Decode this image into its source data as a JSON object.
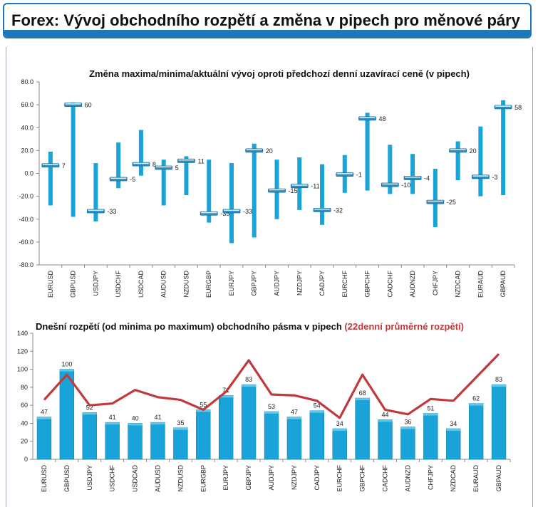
{
  "header": {
    "title": "Forex: Vývoj obchodního rozpětí a změna v pipech pro měnové páry"
  },
  "chart_data": [
    {
      "type": "range",
      "title": "Změna maxima/minima/aktuální vývoj oproti předchozí denní uzavírací ceně (v pipech)",
      "categories": [
        "EURUSD",
        "GBPUSD",
        "USDJPY",
        "USDCHF",
        "USDCAD",
        "AUDUSD",
        "NZDUSD",
        "EURGBP",
        "EURJPY",
        "GBPJPY",
        "AUDJPY",
        "NZDJPY",
        "CADJPY",
        "EURCHF",
        "GBPCHF",
        "CADCHF",
        "AUDNZD",
        "CHFJPY",
        "NZDCAD",
        "EURAUD",
        "GBPAUD"
      ],
      "high": [
        19,
        62,
        9,
        27,
        38,
        12,
        15,
        12,
        9,
        26,
        12,
        14,
        8,
        16,
        53,
        25,
        17,
        4,
        28,
        41,
        64
      ],
      "low": [
        -28,
        -38,
        -42,
        -13,
        -2,
        -28,
        -19,
        -43,
        -61,
        -56,
        -40,
        -32,
        -45,
        -17,
        -15,
        -18,
        -18,
        -47,
        -6,
        -20,
        -19
      ],
      "current": [
        7,
        60,
        -33,
        -5,
        8,
        5,
        11,
        -35,
        -33,
        20,
        -15,
        -11,
        -32,
        -1,
        48,
        -10,
        -4,
        -25,
        20,
        -3,
        58
      ],
      "current_labels": [
        "7",
        "60",
        "-33",
        "-5",
        "8",
        "5",
        "11",
        "-35",
        "-33",
        "20",
        "-15",
        "-11",
        "-32",
        "-1",
        "48",
        "-10",
        "-4",
        "-25",
        "20",
        "-3",
        "58"
      ],
      "ylim": [
        -80,
        80
      ],
      "yticks": [
        "80.0",
        "60.0",
        "40.0",
        "20.0",
        "0.0",
        "-20.0",
        "-40.0",
        "-60.0",
        "-80.0"
      ],
      "bar_color": "#1aa3d8"
    },
    {
      "type": "bar+line",
      "title": "Dnešní rozpětí (od minima po maximum) obchodního pásma v pipech",
      "title_highlight": "(22denní průměrné rozpětí)",
      "categories": [
        "EURUSD",
        "GBPUSD",
        "USDJPY",
        "USDCHF",
        "USDCAD",
        "AUDUSD",
        "NZDUSD",
        "EURGBP",
        "EURJPY",
        "GBPJPY",
        "AUDJPY",
        "NZDJPY",
        "CADJPY",
        "EURCHF",
        "GBPCHF",
        "CADCHF",
        "AUDNZD",
        "CHFJPY",
        "NZDCAD",
        "EURAUD",
        "GBPAUD"
      ],
      "bars": [
        47,
        100,
        52,
        41,
        40,
        41,
        35,
        55,
        71,
        83,
        53,
        47,
        54,
        34,
        68,
        44,
        36,
        51,
        34,
        62,
        83
      ],
      "bar_labels": [
        "47",
        "100",
        "52",
        "41",
        "40",
        "41",
        "35",
        "55",
        "71",
        "83",
        "53",
        "47",
        "54",
        "34",
        "68",
        "44",
        "36",
        "51",
        "34",
        "62",
        "83"
      ],
      "line": [
        66,
        94,
        60,
        62,
        77,
        69,
        66,
        55,
        75,
        110,
        72,
        71,
        65,
        46,
        94,
        55,
        50,
        67,
        65,
        91,
        117
      ],
      "ylim": [
        0,
        140
      ],
      "yticks": [
        "140",
        "120",
        "100",
        "80",
        "60",
        "40",
        "20",
        "0"
      ],
      "bar_color": "#1aa3d8",
      "line_color": "#c0393b"
    }
  ]
}
